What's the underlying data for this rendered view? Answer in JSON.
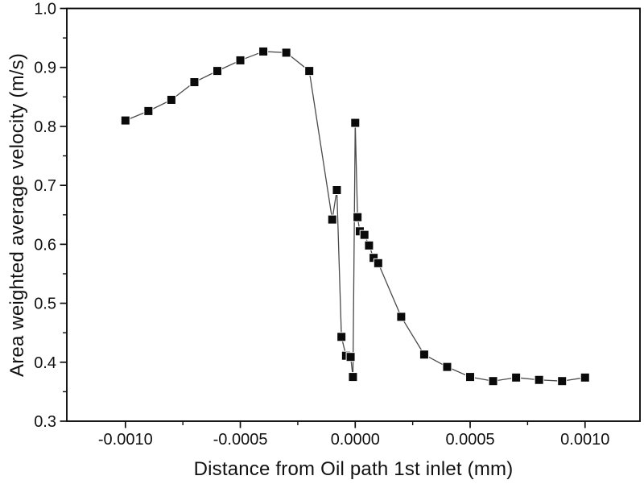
{
  "figure": {
    "background_color": "#ffffff",
    "axis_color": "#0d0d0d",
    "text_color": "#111111"
  },
  "chart_data": {
    "type": "scatter",
    "title": "",
    "xlabel": "Distance from Oil path 1st inlet (mm)",
    "ylabel": "Area weighted average velocity (m/s)",
    "xlim": [
      -0.001255,
      0.001239
    ],
    "ylim": [
      0.3,
      1.0
    ],
    "grid": false,
    "legend": null,
    "x_major_ticks": [
      -0.001,
      -0.0005,
      0.0,
      0.0005,
      0.001
    ],
    "x_major_tick_labels": [
      "-0.0010",
      "-0.0005",
      "0.0000",
      "0.0005",
      "0.0010"
    ],
    "x_minor_ticks": [
      -0.00075,
      -0.00025,
      0.00025,
      0.00075
    ],
    "y_major_ticks": [
      0.3,
      0.4,
      0.5,
      0.6,
      0.7,
      0.8,
      0.9,
      1.0
    ],
    "y_major_tick_labels": [
      "0.3",
      "0.4",
      "0.5",
      "0.6",
      "0.7",
      "0.8",
      "0.9",
      "1.0"
    ],
    "y_minor_ticks": [
      0.35,
      0.45,
      0.55,
      0.65,
      0.75,
      0.85,
      0.95
    ],
    "series": [
      {
        "name": "area-weighted-average-velocity",
        "marker": "square",
        "marker_size": 11,
        "marker_color": "#0a0a0a",
        "line_color": "#4a4a4a",
        "line_width": 1.3,
        "points": [
          [
            -0.001,
            0.81
          ],
          [
            -0.0009,
            0.826
          ],
          [
            -0.0008,
            0.845
          ],
          [
            -0.0007,
            0.875
          ],
          [
            -0.0006,
            0.894
          ],
          [
            -0.0005,
            0.912
          ],
          [
            -0.0004,
            0.927
          ],
          [
            -0.0003,
            0.925
          ],
          [
            -0.0002,
            0.894
          ],
          [
            -0.0001,
            0.642
          ],
          [
            -8e-05,
            0.692
          ],
          [
            -6e-05,
            0.443
          ],
          [
            -4e-05,
            0.411
          ],
          [
            -2e-05,
            0.409
          ],
          [
            -1e-05,
            0.375
          ],
          [
            0.0,
            0.806
          ],
          [
            1e-05,
            0.646
          ],
          [
            2e-05,
            0.622
          ],
          [
            4e-05,
            0.616
          ],
          [
            6e-05,
            0.598
          ],
          [
            8e-05,
            0.577
          ],
          [
            0.0001,
            0.568
          ],
          [
            0.0002,
            0.477
          ],
          [
            0.0003,
            0.413
          ],
          [
            0.0004,
            0.392
          ],
          [
            0.0005,
            0.375
          ],
          [
            0.0006,
            0.368
          ],
          [
            0.0007,
            0.374
          ],
          [
            0.0008,
            0.37
          ],
          [
            0.0009,
            0.368
          ],
          [
            0.001,
            0.374
          ]
        ]
      }
    ]
  }
}
